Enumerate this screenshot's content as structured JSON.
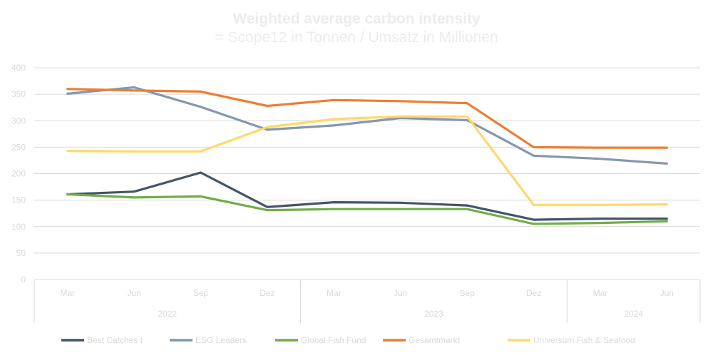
{
  "colors": {
    "background": "#ffffff",
    "grid": "#d9d9d9",
    "text": "#d9d9d9"
  },
  "chart_data": {
    "type": "line",
    "title": "Weighted average carbon intensity",
    "subtitle": "= Scope12 in Tonnen / Umsatz in Millionen",
    "x": [
      "Mar",
      "Jun",
      "Sep",
      "Dez",
      "Mar",
      "Jun",
      "Sep",
      "Dez",
      "Mar",
      "Jun"
    ],
    "x_groups": [
      {
        "label": "2022",
        "count": 4
      },
      {
        "label": "2023",
        "count": 4
      },
      {
        "label": "2024",
        "count": 2
      }
    ],
    "ylim": [
      0,
      400
    ],
    "yticks": [
      0,
      50,
      100,
      150,
      200,
      250,
      300,
      350,
      400
    ],
    "grid": true,
    "legend_position": "bottom",
    "series": [
      {
        "name": "Best Catches I",
        "color": "#44546a",
        "values": [
          161,
          166,
          202,
          137,
          146,
          145,
          140,
          113,
          115,
          115
        ]
      },
      {
        "name": "ESG Leaders",
        "color": "#8497b0",
        "values": [
          351,
          363,
          326,
          283,
          291,
          305,
          301,
          234,
          228,
          219
        ]
      },
      {
        "name": "Global Fish Fund",
        "color": "#70ad47",
        "values": [
          161,
          155,
          157,
          131,
          133,
          133,
          133,
          105,
          107,
          110
        ]
      },
      {
        "name": "Gesamtmarkt",
        "color": "#ed7d31",
        "values": [
          360,
          357,
          355,
          328,
          339,
          337,
          333,
          250,
          249,
          249
        ]
      },
      {
        "name": "Universum Fish & Seafood",
        "color": "#ffd966",
        "values": [
          243,
          242,
          242,
          288,
          303,
          308,
          308,
          141,
          141,
          142
        ]
      }
    ]
  }
}
